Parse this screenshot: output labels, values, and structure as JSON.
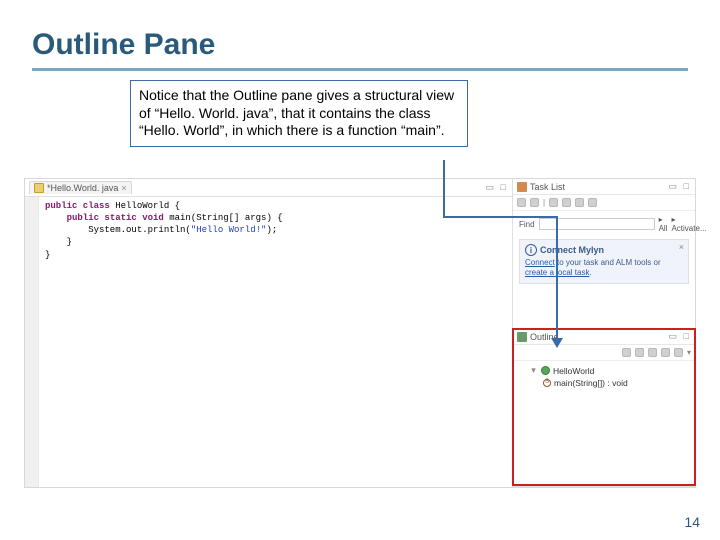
{
  "slide": {
    "title": "Outline Pane",
    "page_number": "14"
  },
  "callout": {
    "text": "Notice that the Outline pane gives a structural view of “Hello. World. java”, that it contains the class “Hello. World”, in which there is a function “main”."
  },
  "editor": {
    "tab_label": "*Hello.World. java",
    "code_lines": [
      {
        "kw": "public class",
        "rest": " HelloWorld {"
      },
      {
        "indent": "    ",
        "kw": "public static void",
        "rest": " main(String[] args) {"
      },
      {
        "indent": "        ",
        "plain": "System.out.println(",
        "str": "\"Hello World!\"",
        "after": ");"
      },
      {
        "indent": "    ",
        "plain": "}"
      },
      {
        "plain": "}"
      }
    ]
  },
  "tasklist": {
    "title": "Task List",
    "find_label": "Find",
    "all_label": "All",
    "activate_label": "Activate...",
    "mylyn_title": "Connect Mylyn",
    "mylyn_line1_pre": "Connect",
    "mylyn_line1_post": " to your task and ALM tools or ",
    "mylyn_line2": "create a local task",
    "mylyn_line2_post": "."
  },
  "outline": {
    "title": "Outline",
    "class_label": "HelloWorld",
    "method_label": "main(String[]) : void"
  },
  "colors": {
    "title_color": "#2a5a7a",
    "title_underline": "#7aa8c4",
    "callout_border": "#3a6aa8",
    "arrow": "#3a6aa8",
    "outline_highlight": "#cc2020",
    "keyword": "#8a1a6a",
    "string": "#2040c0",
    "link": "#2a5aaa"
  }
}
